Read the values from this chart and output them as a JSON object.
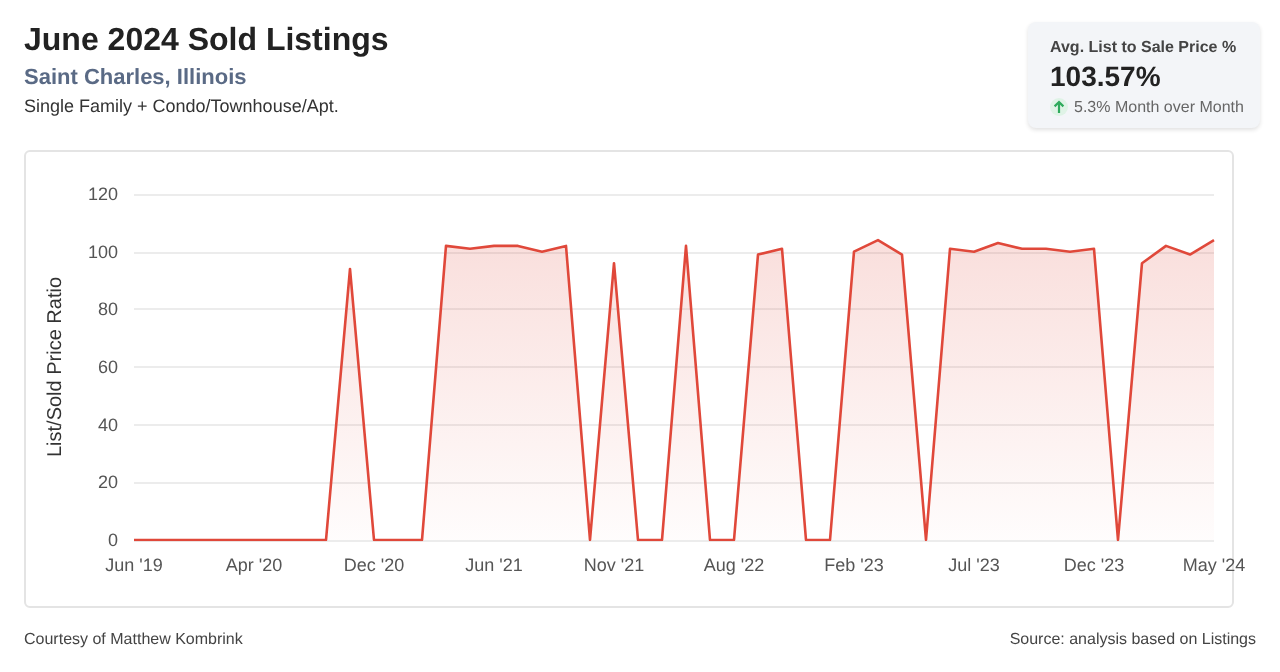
{
  "chart_data": {
    "type": "area",
    "title": "June 2024 Sold Listings",
    "subtitle": "Saint Charles, Illinois",
    "annotations": [
      "Single Family + Condo/Townhouse/Apt.",
      "Avg. List to Sale Price %",
      "103.57%",
      "5.3% Month over Month",
      "Courtesy of Matthew Kombrink",
      "Source: analysis based on Listings"
    ],
    "ylabel": "List/Sold Price Ratio",
    "categories": [
      "Jun '19",
      null,
      null,
      null,
      null,
      "Apr '20",
      null,
      null,
      null,
      null,
      "Dec '20",
      null,
      null,
      null,
      null,
      "Jun '21",
      null,
      null,
      null,
      null,
      "Nov '21",
      null,
      null,
      null,
      null,
      "Aug '22",
      null,
      null,
      null,
      null,
      "Feb '23",
      null,
      null,
      null,
      null,
      "Jul '23",
      null,
      null,
      null,
      null,
      "Dec '23",
      null,
      null,
      null,
      null,
      "May '24"
    ],
    "series": [
      {
        "color": "#e0483a",
        "values": [
          0,
          0,
          0,
          0,
          0,
          0,
          0,
          0,
          0,
          94,
          0,
          0,
          0,
          102,
          101,
          102,
          102,
          100,
          102,
          0,
          96,
          0,
          0,
          102,
          0,
          0,
          99,
          101,
          0,
          0,
          100,
          104,
          99,
          0,
          101,
          100,
          103,
          101,
          101,
          100,
          101,
          0,
          96,
          102,
          99,
          104
        ]
      }
    ],
    "ylim": [
      0,
      120
    ],
    "yticks": [
      0,
      20,
      40,
      60,
      80,
      100,
      120
    ],
    "grid": "y",
    "marker": "none",
    "line_style": "solid"
  }
}
